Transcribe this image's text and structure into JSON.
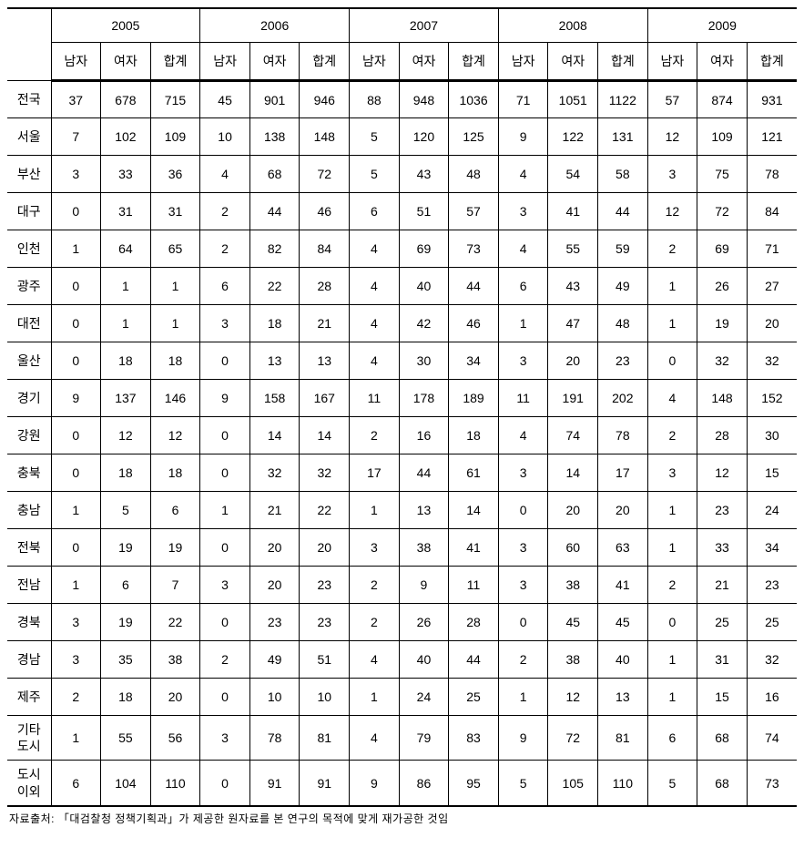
{
  "years": [
    "2005",
    "2006",
    "2007",
    "2008",
    "2009"
  ],
  "sub_headers": [
    "남자",
    "여자",
    "합계"
  ],
  "rows": [
    {
      "label": "전국",
      "multi": false,
      "values": [
        37,
        678,
        715,
        45,
        901,
        946,
        88,
        948,
        1036,
        71,
        1051,
        1122,
        57,
        874,
        931
      ]
    },
    {
      "label": "서울",
      "multi": false,
      "values": [
        7,
        102,
        109,
        10,
        138,
        148,
        5,
        120,
        125,
        9,
        122,
        131,
        12,
        109,
        121
      ]
    },
    {
      "label": "부산",
      "multi": false,
      "values": [
        3,
        33,
        36,
        4,
        68,
        72,
        5,
        43,
        48,
        4,
        54,
        58,
        3,
        75,
        78
      ]
    },
    {
      "label": "대구",
      "multi": false,
      "values": [
        0,
        31,
        31,
        2,
        44,
        46,
        6,
        51,
        57,
        3,
        41,
        44,
        12,
        72,
        84
      ]
    },
    {
      "label": "인천",
      "multi": false,
      "values": [
        1,
        64,
        65,
        2,
        82,
        84,
        4,
        69,
        73,
        4,
        55,
        59,
        2,
        69,
        71
      ]
    },
    {
      "label": "광주",
      "multi": false,
      "values": [
        0,
        1,
        1,
        6,
        22,
        28,
        4,
        40,
        44,
        6,
        43,
        49,
        1,
        26,
        27
      ]
    },
    {
      "label": "대전",
      "multi": false,
      "values": [
        0,
        1,
        1,
        3,
        18,
        21,
        4,
        42,
        46,
        1,
        47,
        48,
        1,
        19,
        20
      ]
    },
    {
      "label": "울산",
      "multi": false,
      "values": [
        0,
        18,
        18,
        0,
        13,
        13,
        4,
        30,
        34,
        3,
        20,
        23,
        0,
        32,
        32
      ]
    },
    {
      "label": "경기",
      "multi": false,
      "values": [
        9,
        137,
        146,
        9,
        158,
        167,
        11,
        178,
        189,
        11,
        191,
        202,
        4,
        148,
        152
      ]
    },
    {
      "label": "강원",
      "multi": false,
      "values": [
        0,
        12,
        12,
        0,
        14,
        14,
        2,
        16,
        18,
        4,
        74,
        78,
        2,
        28,
        30
      ]
    },
    {
      "label": "충북",
      "multi": false,
      "values": [
        0,
        18,
        18,
        0,
        32,
        32,
        17,
        44,
        61,
        3,
        14,
        17,
        3,
        12,
        15
      ]
    },
    {
      "label": "충남",
      "multi": false,
      "values": [
        1,
        5,
        6,
        1,
        21,
        22,
        1,
        13,
        14,
        0,
        20,
        20,
        1,
        23,
        24
      ]
    },
    {
      "label": "전북",
      "multi": false,
      "values": [
        0,
        19,
        19,
        0,
        20,
        20,
        3,
        38,
        41,
        3,
        60,
        63,
        1,
        33,
        34
      ]
    },
    {
      "label": "전남",
      "multi": false,
      "values": [
        1,
        6,
        7,
        3,
        20,
        23,
        2,
        9,
        11,
        3,
        38,
        41,
        2,
        21,
        23
      ]
    },
    {
      "label": "경북",
      "multi": false,
      "values": [
        3,
        19,
        22,
        0,
        23,
        23,
        2,
        26,
        28,
        0,
        45,
        45,
        0,
        25,
        25
      ]
    },
    {
      "label": "경남",
      "multi": false,
      "values": [
        3,
        35,
        38,
        2,
        49,
        51,
        4,
        40,
        44,
        2,
        38,
        40,
        1,
        31,
        32
      ]
    },
    {
      "label": "제주",
      "multi": false,
      "values": [
        2,
        18,
        20,
        0,
        10,
        10,
        1,
        24,
        25,
        1,
        12,
        13,
        1,
        15,
        16
      ]
    },
    {
      "label": "기타\n도시",
      "multi": true,
      "values": [
        1,
        55,
        56,
        3,
        78,
        81,
        4,
        79,
        83,
        9,
        72,
        81,
        6,
        68,
        74
      ]
    },
    {
      "label": "도시\n이외",
      "multi": true,
      "values": [
        6,
        104,
        110,
        0,
        91,
        91,
        9,
        86,
        95,
        5,
        105,
        110,
        5,
        68,
        73
      ]
    }
  ],
  "source_note": "자료출처: 「대검찰청 정책기획과」가 제공한 원자료를 본 연구의 목적에 맞게 재가공한 것임",
  "styles": {
    "font_family": "Malgun Gothic",
    "border_color": "#000000",
    "background_color": "#ffffff",
    "font_size_cell": 14,
    "font_size_note": 12,
    "header_border_top_width": 2,
    "subheader_border_bottom_width": 3,
    "last_row_border_bottom_width": 2
  }
}
